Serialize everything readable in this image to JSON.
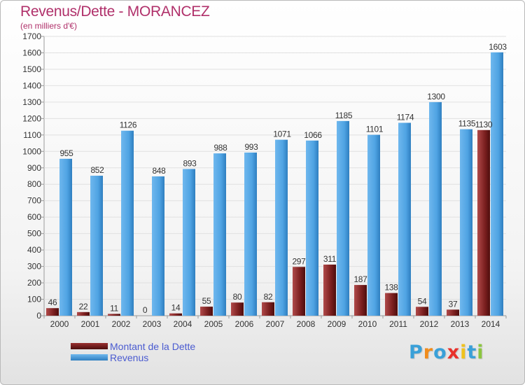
{
  "header": {
    "title": "Revenus/Dette - MORANCEZ",
    "subtitle": "(en milliers d'€)"
  },
  "legend": {
    "items": [
      {
        "label": "Montant de la Dette",
        "color": "#7a1f1f"
      },
      {
        "label": "Revenus",
        "color": "#4fa3e3"
      }
    ]
  },
  "logo": {
    "letters": [
      "P",
      "r",
      "o",
      "x",
      "i",
      "t",
      "i"
    ],
    "colors": [
      "#3aa0d8",
      "#f08c1c",
      "#3aa0d8",
      "#e8302a",
      "#f0c21c",
      "#3aa0d8",
      "#8bc53f"
    ]
  },
  "chart_data": {
    "type": "bar",
    "categories": [
      "2000",
      "2001",
      "2002",
      "2003",
      "2004",
      "2005",
      "2006",
      "2007",
      "2008",
      "2009",
      "2010",
      "2011",
      "2012",
      "2013",
      "2014"
    ],
    "series": [
      {
        "name": "Montant de la Dette",
        "color": "#7a1f1f",
        "values": [
          46,
          22,
          11,
          0,
          14,
          55,
          80,
          82,
          297,
          311,
          187,
          138,
          54,
          37,
          1130
        ]
      },
      {
        "name": "Revenus",
        "color": "#4fa3e3",
        "values": [
          955,
          852,
          1126,
          848,
          893,
          988,
          993,
          1071,
          1066,
          1185,
          1101,
          1174,
          1300,
          1135,
          1603
        ]
      }
    ],
    "ylim": [
      0,
      1700
    ],
    "yticks": [
      "0",
      "100",
      "200",
      "300",
      "400",
      "500",
      "600",
      "700",
      "800",
      "900",
      "1000",
      "1100",
      "1200",
      "1300",
      "1400",
      "1500",
      "1600",
      "1700"
    ],
    "grid": true,
    "legend_position": "bottom-left",
    "xlabel": "",
    "ylabel": ""
  }
}
